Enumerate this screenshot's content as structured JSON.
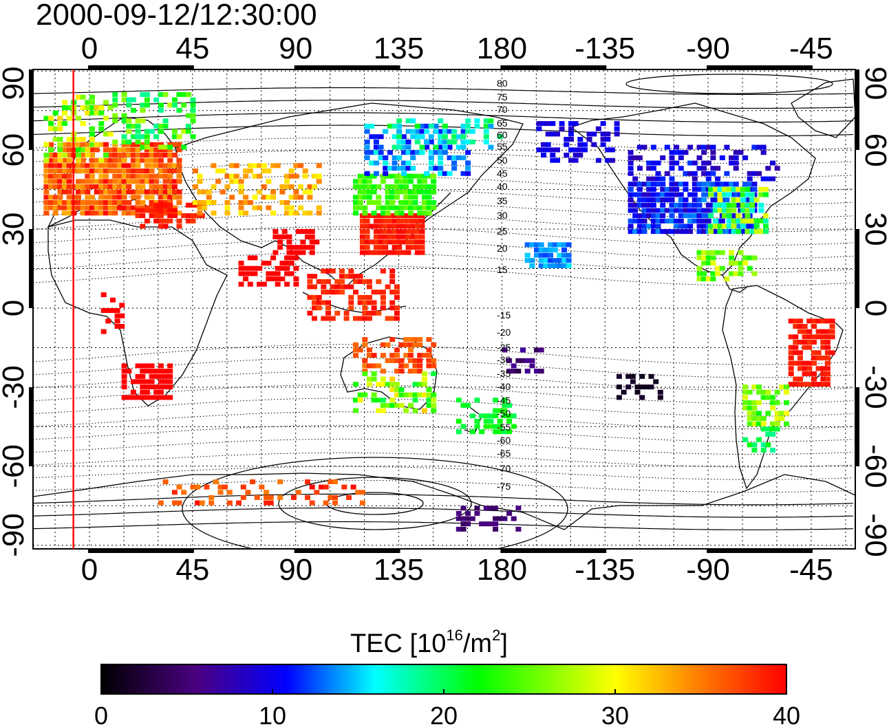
{
  "title": "2000-09-12/12:30:00",
  "map": {
    "top_lon_ticks": [
      "0",
      "45",
      "90",
      "135",
      "180",
      "-135",
      "-90",
      "-45"
    ],
    "bottom_lon_ticks": [
      "0",
      "45",
      "90",
      "135",
      "180",
      "-135",
      "-90",
      "-45"
    ],
    "left_lat_ticks": [
      "90",
      "60",
      "30",
      "0",
      "-30",
      "-60",
      "-90"
    ],
    "right_lat_ticks": [
      "90",
      "60",
      "30",
      "0",
      "-30",
      "-60",
      "-90"
    ],
    "contour_labels": [
      "80",
      "75",
      "70",
      "65",
      "60",
      "55",
      "50",
      "45",
      "40",
      "35",
      "30",
      "25",
      "20",
      "15",
      "-15",
      "-20",
      "-25",
      "-30",
      "-35",
      "-40",
      "-45",
      "-50",
      "-55",
      "-60",
      "-65",
      "-70",
      "-75"
    ],
    "red_line_longitude": -7
  },
  "colorbar": {
    "label_main": "TEC  [10",
    "label_sup1": "16",
    "label_mid": "/m",
    "label_sup2": "2",
    "label_end": "]",
    "ticks": [
      "0",
      "10",
      "20",
      "30",
      "40"
    ],
    "min": 0,
    "max": 40,
    "colors": [
      "#000000",
      "#4b0082",
      "#0000ff",
      "#00ffff",
      "#00ff00",
      "#ffff00",
      "#ff8000",
      "#ff0000"
    ]
  }
}
